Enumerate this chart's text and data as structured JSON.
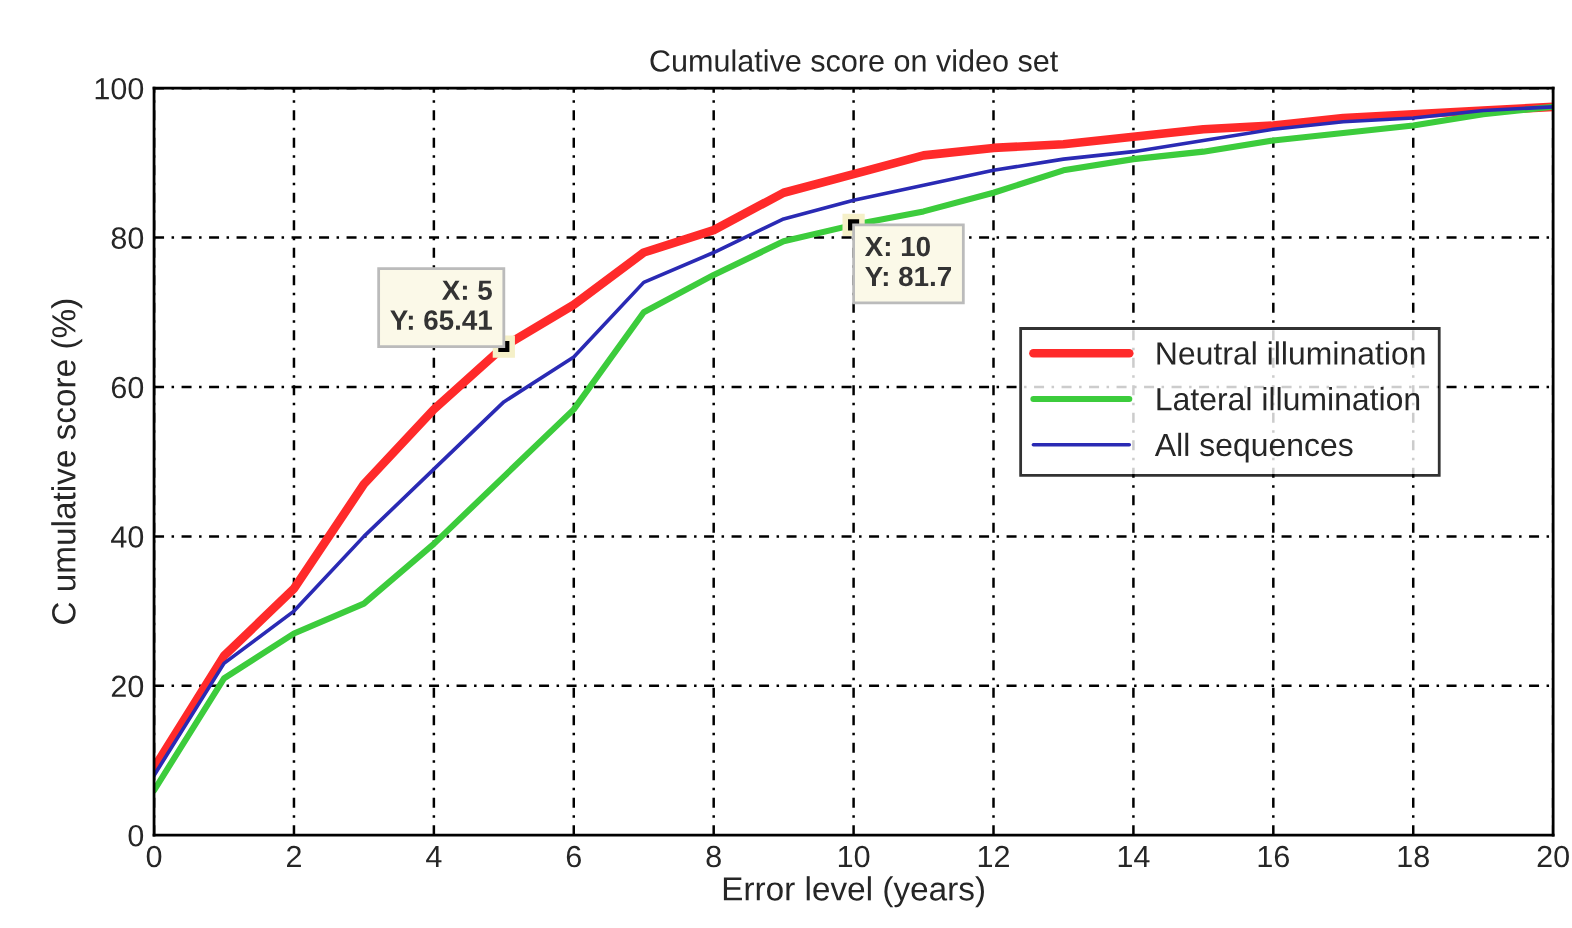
{
  "chart_data": {
    "type": "line",
    "title": "Cumulative score on video set",
    "xlabel": "Error level (years)",
    "ylabel": "C umulative score (%)",
    "x": [
      0,
      1,
      2,
      3,
      4,
      5,
      6,
      7,
      8,
      9,
      10,
      11,
      12,
      13,
      14,
      15,
      16,
      17,
      18,
      19,
      20
    ],
    "series": [
      {
        "name": "Neutral illumination",
        "color": "#ff2a2a",
        "values": [
          9,
          24,
          33,
          47,
          57,
          65.41,
          71,
          78,
          81,
          86,
          88.5,
          91,
          92,
          92.5,
          93.5,
          94.5,
          95,
          96,
          96.5,
          97,
          97.5
        ]
      },
      {
        "name": "Lateral illumination",
        "color": "#3ccc3c",
        "values": [
          6,
          21,
          27,
          31,
          39,
          48,
          57,
          70,
          75,
          79.5,
          81.7,
          83.5,
          86,
          89,
          90.5,
          91.5,
          93,
          94,
          95,
          96.5,
          97.5
        ]
      },
      {
        "name": "All sequences",
        "color": "#2a2ab4",
        "values": [
          8,
          23,
          30,
          40,
          49,
          58,
          64,
          74,
          78,
          82.5,
          85,
          87,
          89,
          90.5,
          91.5,
          93,
          94.5,
          95.5,
          96,
          97,
          97.5
        ]
      }
    ],
    "annotations": [
      {
        "text": "X: 5\nY: 65.41",
        "x": 5,
        "y": 65.41
      },
      {
        "text": "X: 10\nY: 81.7",
        "x": 10,
        "y": 81.7
      }
    ],
    "xlim": [
      0,
      20
    ],
    "xticks": [
      0,
      2,
      4,
      6,
      8,
      10,
      12,
      14,
      16,
      18,
      20
    ],
    "ylim": [
      0,
      100
    ],
    "yticks": [
      0,
      20,
      40,
      60,
      80,
      100
    ],
    "grid": true,
    "legend": "center right",
    "marker": "none",
    "line_style": "solid"
  }
}
